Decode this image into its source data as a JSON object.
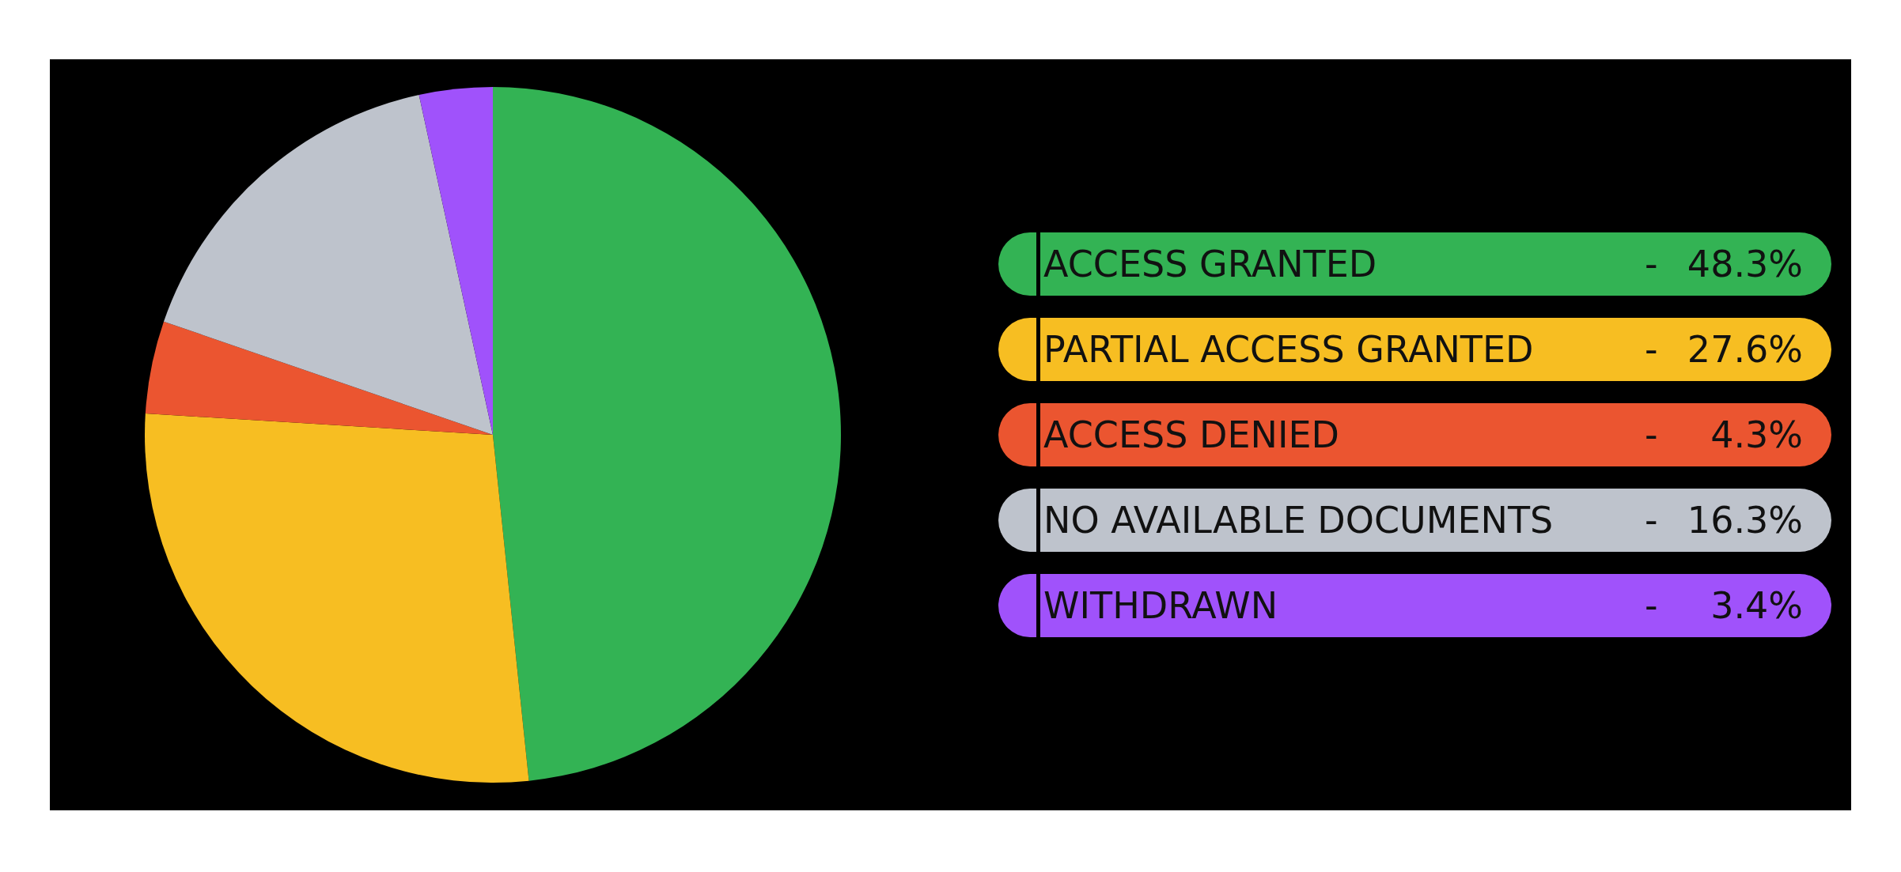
{
  "chart_data": {
    "type": "pie",
    "categories": [
      "ACCESS GRANTED",
      "PARTIAL ACCESS GRANTED",
      "ACCESS DENIED",
      "NO AVAILABLE DOCUMENTS",
      "WITHDRAWN"
    ],
    "values": [
      48.3,
      27.6,
      4.3,
      16.3,
      3.4
    ],
    "colors": [
      "#33b354",
      "#f7be22",
      "#eb5530",
      "#bec3cc",
      "#a052fb"
    ],
    "value_labels": [
      "48.3%",
      "27.6%",
      "4.3%",
      "16.3%",
      "3.4%"
    ],
    "annotations": [
      "-",
      "-",
      "-",
      "-",
      "-"
    ],
    "legend": "right"
  }
}
